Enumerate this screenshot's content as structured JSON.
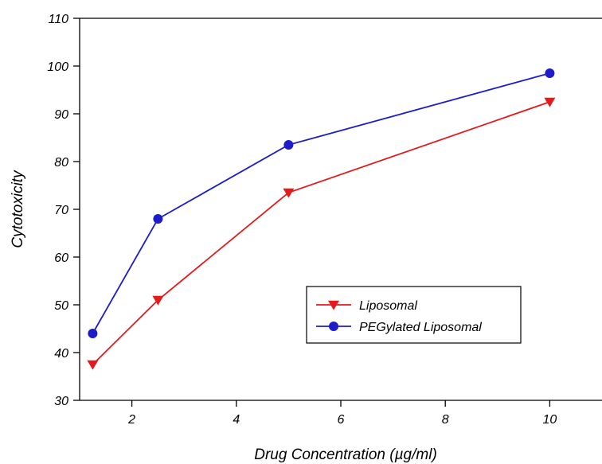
{
  "chart_data": {
    "type": "line",
    "title": "",
    "xlabel": "Drug Concentration (µg/ml)",
    "ylabel": "Cytotoxicity",
    "xlim": [
      1,
      11
    ],
    "ylim": [
      30,
      110
    ],
    "xticks": [
      2,
      4,
      6,
      8,
      10
    ],
    "yticks": [
      30,
      40,
      50,
      60,
      70,
      80,
      90,
      100,
      110
    ],
    "grid": false,
    "legend_position": "center-right",
    "series": [
      {
        "name": "Liposomal",
        "color": "#e41a1c",
        "marker": "triangle-down",
        "x": [
          1.25,
          2.5,
          5,
          10
        ],
        "y": [
          37.5,
          51,
          73.5,
          92.5
        ]
      },
      {
        "name": "PEGylated Liposomal",
        "color": "#1c1ccc",
        "marker": "circle",
        "x": [
          1.25,
          2.5,
          5,
          10
        ],
        "y": [
          44,
          68,
          83.5,
          98.5
        ]
      }
    ]
  }
}
